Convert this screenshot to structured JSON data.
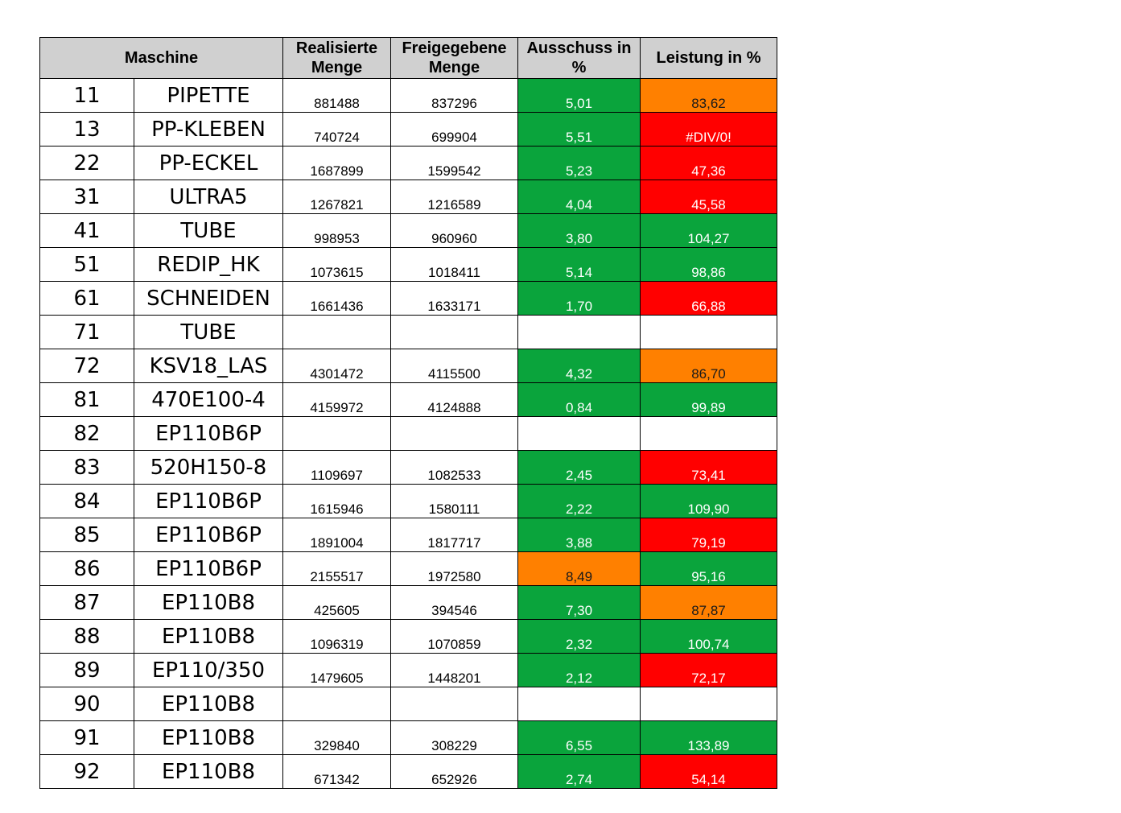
{
  "headers": {
    "maschine": "Maschine",
    "realisiert_1": "Realisierte",
    "realisiert_2": "Menge",
    "freigegeben_1": "Freigegebene",
    "freigegeben_2": "Menge",
    "ausschuss_1": "Ausschuss in",
    "ausschuss_2": "%",
    "leistung": "Leistung in %"
  },
  "colors": {
    "green": "#0aa43c",
    "red": "#ff0000",
    "orange": "#ff8000",
    "header_gray": "#d0d0d0"
  },
  "rows": [
    {
      "id": "11",
      "name": "PIPETTE",
      "realisiert": "881488",
      "freigegeben": "837296",
      "ausschuss": "5,01",
      "ausschuss_status": "green",
      "leistung": "83,62",
      "leistung_status": "orange"
    },
    {
      "id": "13",
      "name": "PP-KLEBEN",
      "realisiert": "740724",
      "freigegeben": "699904",
      "ausschuss": "5,51",
      "ausschuss_status": "green",
      "leistung": "#DIV/0!",
      "leistung_status": "red"
    },
    {
      "id": "22",
      "name": "PP-ECKEL",
      "realisiert": "1687899",
      "freigegeben": "1599542",
      "ausschuss": "5,23",
      "ausschuss_status": "green",
      "leistung": "47,36",
      "leistung_status": "red"
    },
    {
      "id": "31",
      "name": "ULTRA5",
      "realisiert": "1267821",
      "freigegeben": "1216589",
      "ausschuss": "4,04",
      "ausschuss_status": "green",
      "leistung": "45,58",
      "leistung_status": "red"
    },
    {
      "id": "41",
      "name": "TUBE",
      "realisiert": "998953",
      "freigegeben": "960960",
      "ausschuss": "3,80",
      "ausschuss_status": "green",
      "leistung": "104,27",
      "leistung_status": "green"
    },
    {
      "id": "51",
      "name": "REDIP_HK",
      "realisiert": "1073615",
      "freigegeben": "1018411",
      "ausschuss": "5,14",
      "ausschuss_status": "green",
      "leistung": "98,86",
      "leistung_status": "green"
    },
    {
      "id": "61",
      "name": "SCHNEIDEN",
      "realisiert": "1661436",
      "freigegeben": "1633171",
      "ausschuss": "1,70",
      "ausschuss_status": "green",
      "leistung": "66,88",
      "leistung_status": "red"
    },
    {
      "id": "71",
      "name": "TUBE",
      "realisiert": "",
      "freigegeben": "",
      "ausschuss": "",
      "ausschuss_status": "blank",
      "leistung": "",
      "leistung_status": "blank"
    },
    {
      "id": "72",
      "name": "KSV18_LAS",
      "realisiert": "4301472",
      "freigegeben": "4115500",
      "ausschuss": "4,32",
      "ausschuss_status": "green",
      "leistung": "86,70",
      "leistung_status": "orange"
    },
    {
      "id": "81",
      "name": "470E100-4",
      "realisiert": "4159972",
      "freigegeben": "4124888",
      "ausschuss": "0,84",
      "ausschuss_status": "green",
      "leistung": "99,89",
      "leistung_status": "green"
    },
    {
      "id": "82",
      "name": "EP110B6P",
      "realisiert": "",
      "freigegeben": "",
      "ausschuss": "",
      "ausschuss_status": "blank",
      "leistung": "",
      "leistung_status": "blank"
    },
    {
      "id": "83",
      "name": "520H150-8",
      "realisiert": "1109697",
      "freigegeben": "1082533",
      "ausschuss": "2,45",
      "ausschuss_status": "green",
      "leistung": "73,41",
      "leistung_status": "red"
    },
    {
      "id": "84",
      "name": "EP110B6P",
      "realisiert": "1615946",
      "freigegeben": "1580111",
      "ausschuss": "2,22",
      "ausschuss_status": "green",
      "leistung": "109,90",
      "leistung_status": "green"
    },
    {
      "id": "85",
      "name": "EP110B6P",
      "realisiert": "1891004",
      "freigegeben": "1817717",
      "ausschuss": "3,88",
      "ausschuss_status": "green",
      "leistung": "79,19",
      "leistung_status": "red"
    },
    {
      "id": "86",
      "name": "EP110B6P",
      "realisiert": "2155517",
      "freigegeben": "1972580",
      "ausschuss": "8,49",
      "ausschuss_status": "orange",
      "leistung": "95,16",
      "leistung_status": "green"
    },
    {
      "id": "87",
      "name": "EP110B8",
      "realisiert": "425605",
      "freigegeben": "394546",
      "ausschuss": "7,30",
      "ausschuss_status": "green",
      "leistung": "87,87",
      "leistung_status": "orange"
    },
    {
      "id": "88",
      "name": "EP110B8",
      "realisiert": "1096319",
      "freigegeben": "1070859",
      "ausschuss": "2,32",
      "ausschuss_status": "green",
      "leistung": "100,74",
      "leistung_status": "green"
    },
    {
      "id": "89",
      "name": "EP110/350",
      "realisiert": "1479605",
      "freigegeben": "1448201",
      "ausschuss": "2,12",
      "ausschuss_status": "green",
      "leistung": "72,17",
      "leistung_status": "red"
    },
    {
      "id": "90",
      "name": "EP110B8",
      "realisiert": "",
      "freigegeben": "",
      "ausschuss": "",
      "ausschuss_status": "blank",
      "leistung": "",
      "leistung_status": "blank"
    },
    {
      "id": "91",
      "name": "EP110B8",
      "realisiert": "329840",
      "freigegeben": "308229",
      "ausschuss": "6,55",
      "ausschuss_status": "green",
      "leistung": "133,89",
      "leistung_status": "green"
    },
    {
      "id": "92",
      "name": "EP110B8",
      "realisiert": "671342",
      "freigegeben": "652926",
      "ausschuss": "2,74",
      "ausschuss_status": "green",
      "leistung": "54,14",
      "leistung_status": "red"
    }
  ]
}
